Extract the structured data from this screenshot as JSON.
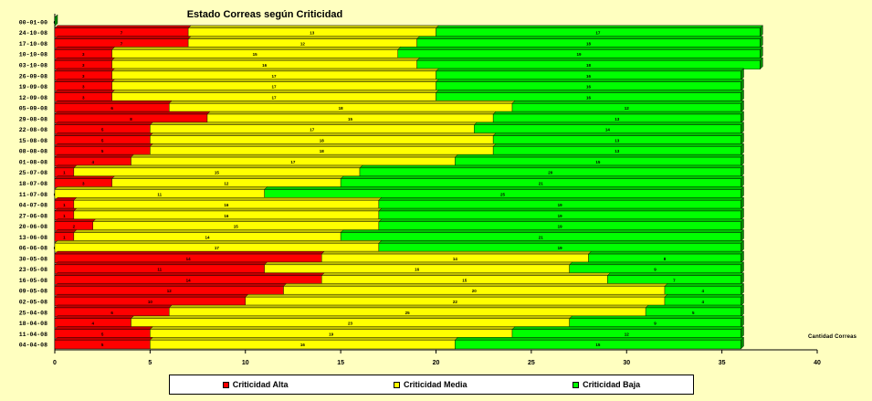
{
  "chart_data": {
    "type": "bar",
    "orientation": "horizontal",
    "stacked": true,
    "title": "Estado Correas según Criticidad",
    "xlabel": "Cantidad Correas",
    "xlim": [
      0,
      40
    ],
    "xticks": [
      0,
      5,
      10,
      15,
      20,
      25,
      30,
      35,
      40
    ],
    "categories": [
      "00-01-00",
      "24-10-08",
      "17-10-08",
      "10-10-08",
      "03-10-08",
      "26-09-08",
      "19-09-08",
      "12-09-08",
      "05-09-08",
      "29-08-08",
      "22-08-08",
      "15-08-08",
      "08-08-08",
      "01-08-08",
      "25-07-08",
      "18-07-08",
      "11-07-08",
      "04-07-08",
      "27-06-08",
      "20-06-08",
      "13-06-08",
      "06-06-08",
      "30-05-08",
      "23-05-08",
      "16-05-08",
      "09-05-08",
      "02-05-08",
      "25-04-08",
      "18-04-08",
      "11-04-08",
      "04-04-08"
    ],
    "series": [
      {
        "name": "Criticidad Alta",
        "color": "#ff0000",
        "values": [
          0,
          7,
          7,
          3,
          3,
          3,
          3,
          3,
          6,
          8,
          5,
          5,
          5,
          4,
          1,
          3,
          0,
          1,
          1,
          2,
          1,
          0,
          14,
          11,
          14,
          12,
          10,
          6,
          4,
          5,
          5
        ]
      },
      {
        "name": "Criticidad Media",
        "color": "#ffff00",
        "values": [
          0,
          13,
          12,
          15,
          16,
          17,
          17,
          17,
          18,
          15,
          17,
          18,
          18,
          17,
          15,
          12,
          11,
          16,
          16,
          15,
          14,
          17,
          14,
          16,
          15,
          20,
          22,
          25,
          23,
          19,
          16
        ]
      },
      {
        "name": "Criticidad Baja",
        "color": "#00ff00",
        "values": [
          0,
          17,
          18,
          19,
          18,
          16,
          16,
          16,
          12,
          13,
          14,
          13,
          13,
          15,
          20,
          21,
          25,
          19,
          19,
          19,
          21,
          19,
          8,
          9,
          7,
          4,
          4,
          5,
          9,
          12,
          15
        ]
      }
    ],
    "legend_position": "bottom",
    "grid": false
  }
}
